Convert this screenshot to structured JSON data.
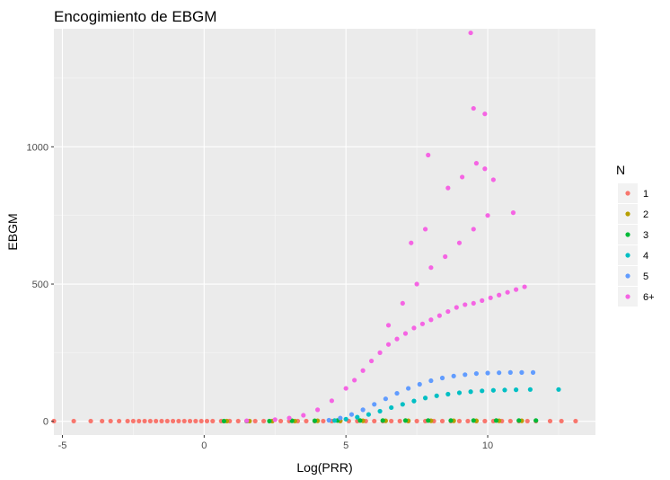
{
  "chart_data": {
    "type": "scatter",
    "title": "Encogimiento de EBGM",
    "xlabel": "Log(PRR)",
    "ylabel": "EBGM",
    "xlim": [
      -5.3,
      13.8
    ],
    "ylim": [
      -50,
      1430
    ],
    "x_ticks": [
      -5,
      0,
      5,
      10
    ],
    "x_tick_labels": [
      "-5",
      "0",
      "5",
      "10"
    ],
    "y_ticks": [
      0,
      500,
      1000
    ],
    "y_tick_labels": [
      "0",
      "500",
      "1000"
    ],
    "grid": true,
    "panel_background": "#ebebeb",
    "legend": {
      "title": "N",
      "position": "right"
    },
    "series": [
      {
        "name": "1",
        "color": "#F8766D",
        "x": [
          -5.3,
          -4.6,
          -4.0,
          -3.6,
          -3.3,
          -3.0,
          -2.7,
          -2.5,
          -2.3,
          -2.1,
          -1.9,
          -1.7,
          -1.5,
          -1.3,
          -1.1,
          -0.9,
          -0.7,
          -0.5,
          -0.3,
          -0.1,
          0.1,
          0.3,
          0.6,
          0.9,
          1.2,
          1.5,
          1.8,
          2.1,
          2.4,
          2.7,
          3.0,
          3.3,
          3.6,
          3.9,
          4.2,
          4.5,
          4.8,
          5.1,
          5.4,
          5.7,
          6.0,
          6.3,
          6.6,
          6.9,
          7.2,
          7.5,
          7.8,
          8.1,
          8.4,
          8.7,
          9.0,
          9.3,
          9.6,
          9.9,
          10.2,
          10.5,
          10.8,
          11.1,
          11.4,
          11.7,
          12.2,
          12.6,
          13.1
        ],
        "y": [
          1,
          1,
          1,
          1,
          1,
          1,
          1,
          1,
          1,
          1,
          1,
          1,
          1,
          1,
          1,
          1,
          1,
          1,
          1,
          1,
          1,
          1,
          1,
          1,
          1,
          1,
          1,
          1,
          1,
          1,
          1,
          1,
          1,
          1,
          1,
          1,
          1,
          1,
          1,
          1,
          1,
          1,
          1,
          1,
          1,
          1,
          1,
          1,
          1,
          1,
          1,
          1,
          1,
          1,
          1,
          1,
          1,
          1,
          1,
          1,
          1,
          1,
          1
        ]
      },
      {
        "name": "2",
        "color": "#B79F00",
        "x": [
          0.8,
          1.6,
          2.4,
          3.2,
          4.0,
          4.8,
          5.6,
          6.4,
          7.2,
          8.0,
          8.8,
          9.6,
          10.4,
          11.2
        ],
        "y": [
          1,
          1,
          1,
          1,
          2,
          2,
          2,
          2,
          2,
          2,
          2,
          2,
          2,
          2
        ]
      },
      {
        "name": "3",
        "color": "#00BA38",
        "x": [
          0.7,
          1.5,
          2.3,
          3.1,
          3.9,
          4.7,
          5.5,
          6.3,
          7.1,
          7.9,
          8.7,
          9.5,
          10.3,
          11.1,
          11.7
        ],
        "y": [
          1,
          1,
          1,
          2,
          2,
          3,
          3,
          3,
          3,
          3,
          3,
          3,
          3,
          3,
          3
        ]
      },
      {
        "name": "4",
        "color": "#00BFC4",
        "x": [
          4.6,
          5.0,
          5.4,
          5.8,
          6.2,
          6.6,
          7.0,
          7.4,
          7.8,
          8.2,
          8.6,
          9.0,
          9.4,
          9.8,
          10.2,
          10.6,
          11.0,
          11.5,
          12.5
        ],
        "y": [
          3,
          8,
          15,
          25,
          37,
          50,
          62,
          74,
          85,
          93,
          99,
          104,
          108,
          111,
          113,
          114,
          115,
          116,
          116
        ]
      },
      {
        "name": "5",
        "color": "#619CFF",
        "x": [
          4.4,
          4.8,
          5.2,
          5.6,
          6.0,
          6.4,
          6.8,
          7.2,
          7.6,
          8.0,
          8.4,
          8.8,
          9.2,
          9.6,
          10.0,
          10.4,
          10.8,
          11.2,
          11.6
        ],
        "y": [
          4,
          12,
          25,
          42,
          62,
          82,
          102,
          120,
          135,
          148,
          158,
          165,
          170,
          174,
          176,
          177,
          178,
          178,
          178
        ]
      },
      {
        "name": "6+",
        "color": "#F564E3",
        "x": [
          1.5,
          2.5,
          3.0,
          3.5,
          4.0,
          4.5,
          5.0,
          5.3,
          5.6,
          5.9,
          6.2,
          6.5,
          6.8,
          7.1,
          7.4,
          7.7,
          8.0,
          8.3,
          8.6,
          8.9,
          9.2,
          9.5,
          9.8,
          10.1,
          10.4,
          10.7,
          11.0,
          11.3,
          6.5,
          7.0,
          7.5,
          8.0,
          8.5,
          9.0,
          9.5,
          10.0,
          7.3,
          7.8,
          8.6,
          9.1,
          9.6,
          9.9,
          10.9,
          7.9,
          9.5,
          9.9,
          10.2,
          9.4
        ],
        "y": [
          2,
          6,
          12,
          22,
          42,
          75,
          120,
          150,
          185,
          220,
          250,
          280,
          300,
          320,
          340,
          355,
          370,
          385,
          400,
          415,
          425,
          430,
          440,
          450,
          460,
          470,
          480,
          490,
          350,
          430,
          500,
          560,
          600,
          650,
          700,
          750,
          650,
          700,
          850,
          890,
          940,
          920,
          760,
          970,
          1140,
          1120,
          880,
          1415
        ]
      }
    ]
  }
}
